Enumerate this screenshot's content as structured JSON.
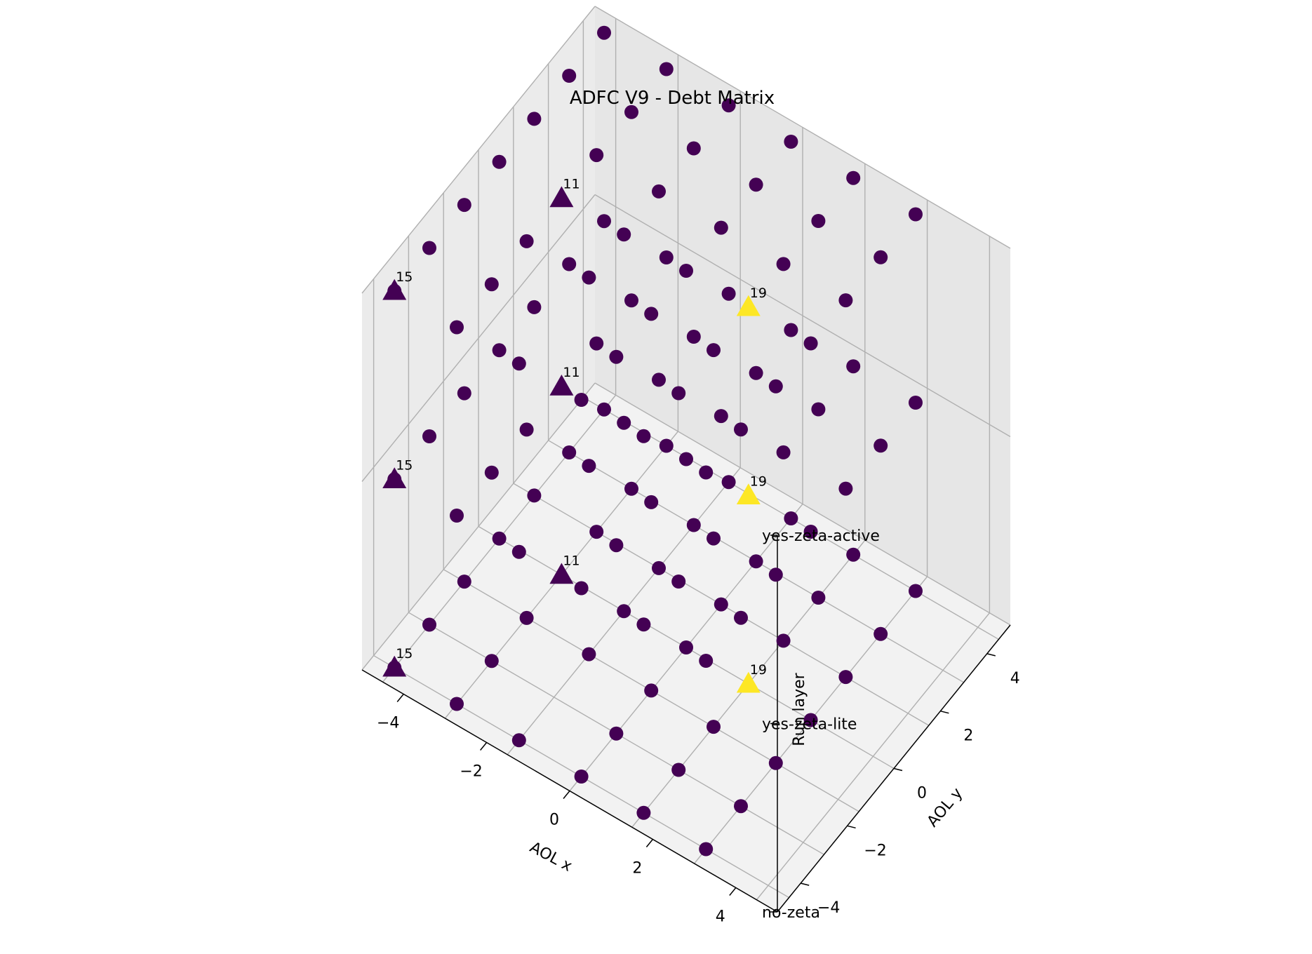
{
  "chart_data": {
    "type": "scatter3d",
    "title": "ADFC V9 - Debt Matrix",
    "xlabel": "AOL x",
    "ylabel": "AOL y",
    "zlabel": "Run layer",
    "xlim": [
      -5,
      5
    ],
    "ylim": [
      -5,
      5
    ],
    "zlim": [
      0,
      2
    ],
    "xticks": [
      "−4",
      "−2",
      "0",
      "2",
      "4"
    ],
    "yticks": [
      "−4",
      "−2",
      "0",
      "2",
      "4"
    ],
    "zticks": [
      "no-zeta",
      "yes-zeta-lite",
      "yes-zeta-active"
    ],
    "grid": true,
    "colors": {
      "low": "#440154",
      "high": "#fde725",
      "grid": "#b0b0b0",
      "pane_left": "#ebebeb",
      "pane_right": "#e6e6e6",
      "pane_floor": "#f2f2f2"
    },
    "markers": {
      "regular": "circle",
      "highlight": "triangle"
    },
    "grid_axis_values": [
      -4.5,
      -3,
      -1.5,
      0,
      1.5,
      3,
      4.5
    ],
    "layers": [
      {
        "name": "no-zeta",
        "regular": [
          [
            -4.5,
            -4.5
          ],
          [
            -4.5,
            -3
          ],
          [
            -4.5,
            -1.5
          ],
          [
            -4.5,
            0
          ],
          [
            -4.5,
            1.5
          ],
          [
            -4.5,
            3
          ],
          [
            -4.5,
            4.5
          ],
          [
            -3,
            -4.5
          ],
          [
            -3,
            -3
          ],
          [
            -3,
            -1.5
          ],
          [
            -3,
            1.5
          ],
          [
            -3,
            3
          ],
          [
            -3,
            4.5
          ],
          [
            -1.5,
            -4.5
          ],
          [
            -1.5,
            -1.5
          ],
          [
            -1.5,
            0
          ],
          [
            -1.5,
            1.5
          ],
          [
            -1.5,
            3
          ],
          [
            -1.5,
            4.5
          ],
          [
            0,
            -4.5
          ],
          [
            0,
            -3
          ],
          [
            0,
            -1.5
          ],
          [
            0,
            0
          ],
          [
            0,
            1.5
          ],
          [
            0,
            3
          ],
          [
            0,
            4.5
          ],
          [
            1.5,
            -4.5
          ],
          [
            1.5,
            -3
          ],
          [
            1.5,
            -1.5
          ],
          [
            1.5,
            1.5
          ],
          [
            1.5,
            3
          ],
          [
            1.5,
            4.5
          ],
          [
            3,
            -4.5
          ],
          [
            3,
            -3
          ],
          [
            3,
            -1.5
          ],
          [
            3,
            0
          ],
          [
            3,
            1.5
          ],
          [
            3,
            3
          ],
          [
            3,
            4.5
          ]
        ],
        "highlights": [
          {
            "x": -3,
            "y": 0,
            "value": 11
          },
          {
            "x": -4.5,
            "y": -4.5,
            "value": 15
          },
          {
            "x": 1.5,
            "y": 0,
            "value": 19
          }
        ]
      },
      {
        "name": "yes-zeta-lite",
        "regular": [
          [
            -4.5,
            -4.5
          ],
          [
            -4.5,
            -3
          ],
          [
            -4.5,
            -1.5
          ],
          [
            -4.5,
            0
          ],
          [
            -4.5,
            1.5
          ],
          [
            -4.5,
            3
          ],
          [
            -4.5,
            4.5
          ],
          [
            -3,
            -4.5
          ],
          [
            -3,
            -3
          ],
          [
            -3,
            -1.5
          ],
          [
            -3,
            1.5
          ],
          [
            -3,
            3
          ],
          [
            -3,
            4.5
          ],
          [
            -1.5,
            -4.5
          ],
          [
            -1.5,
            -1.5
          ],
          [
            -1.5,
            0
          ],
          [
            -1.5,
            1.5
          ],
          [
            -1.5,
            3
          ],
          [
            -1.5,
            4.5
          ],
          [
            0,
            -4.5
          ],
          [
            0,
            -3
          ],
          [
            0,
            -1.5
          ],
          [
            0,
            0
          ],
          [
            0,
            1.5
          ],
          [
            0,
            3
          ],
          [
            0,
            4.5
          ],
          [
            1.5,
            -4.5
          ],
          [
            1.5,
            -3
          ],
          [
            1.5,
            -1.5
          ],
          [
            1.5,
            1.5
          ],
          [
            1.5,
            3
          ],
          [
            1.5,
            4.5
          ],
          [
            3,
            -4.5
          ],
          [
            3,
            -3
          ],
          [
            3,
            -1.5
          ],
          [
            3,
            0
          ],
          [
            3,
            1.5
          ],
          [
            3,
            3
          ],
          [
            3,
            4.5
          ]
        ],
        "highlights": [
          {
            "x": -3,
            "y": 0,
            "value": 11
          },
          {
            "x": -4.5,
            "y": -4.5,
            "value": 15
          },
          {
            "x": 1.5,
            "y": 0,
            "value": 19
          }
        ]
      },
      {
        "name": "yes-zeta-active",
        "regular": [
          [
            -4.5,
            -4.5
          ],
          [
            -4.5,
            -3
          ],
          [
            -4.5,
            -1.5
          ],
          [
            -4.5,
            0
          ],
          [
            -4.5,
            1.5
          ],
          [
            -4.5,
            3
          ],
          [
            -4.5,
            4.5
          ],
          [
            -3,
            -4.5
          ],
          [
            -3,
            -3
          ],
          [
            -3,
            -1.5
          ],
          [
            -3,
            1.5
          ],
          [
            -3,
            3
          ],
          [
            -3,
            4.5
          ],
          [
            -1.5,
            -4.5
          ],
          [
            -1.5,
            -1.5
          ],
          [
            -1.5,
            0
          ],
          [
            -1.5,
            1.5
          ],
          [
            -1.5,
            3
          ],
          [
            -1.5,
            4.5
          ],
          [
            0,
            -4.5
          ],
          [
            0,
            -3
          ],
          [
            0,
            -1.5
          ],
          [
            0,
            0
          ],
          [
            0,
            1.5
          ],
          [
            0,
            3
          ],
          [
            0,
            4.5
          ],
          [
            1.5,
            -4.5
          ],
          [
            1.5,
            -3
          ],
          [
            1.5,
            -1.5
          ],
          [
            1.5,
            1.5
          ],
          [
            1.5,
            3
          ],
          [
            1.5,
            4.5
          ],
          [
            3,
            -4.5
          ],
          [
            3,
            -3
          ],
          [
            3,
            -1.5
          ],
          [
            3,
            0
          ],
          [
            3,
            1.5
          ],
          [
            3,
            3
          ],
          [
            3,
            4.5
          ]
        ],
        "highlights": [
          {
            "x": -3,
            "y": 0,
            "value": 11
          },
          {
            "x": -4.5,
            "y": -4.5,
            "value": 15
          },
          {
            "x": 1.5,
            "y": 0,
            "value": 19
          }
        ]
      }
    ]
  }
}
